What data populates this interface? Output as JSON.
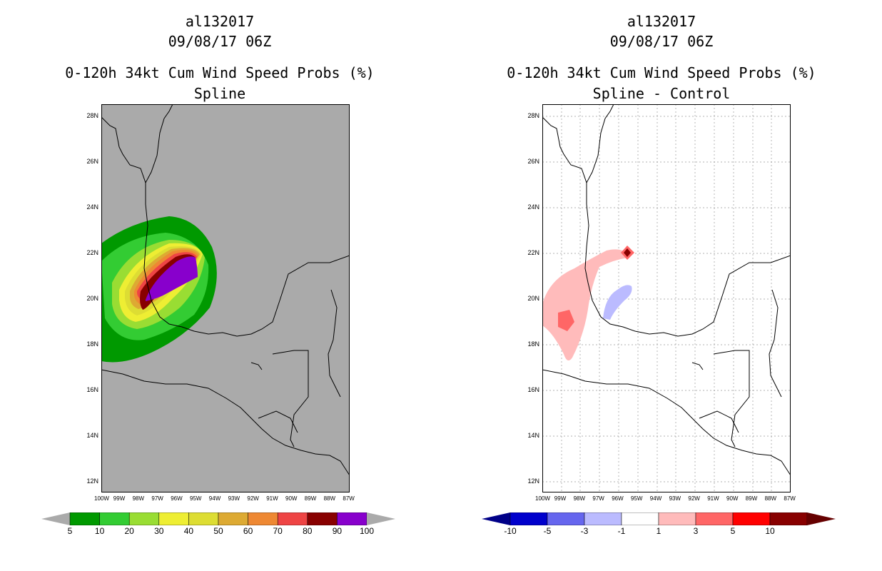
{
  "left": {
    "storm_id": "al132017",
    "datetime": "09/08/17 06Z",
    "product": "0-120h 34kt Cum Wind Speed Probs (%)",
    "subtitle": "Spline",
    "colorbar": {
      "labels": [
        "5",
        "10",
        "20",
        "30",
        "40",
        "50",
        "60",
        "70",
        "80",
        "90",
        "100"
      ],
      "colors": [
        "#009900",
        "#33cc33",
        "#99dd33",
        "#eeee33",
        "#dddd33",
        "#ddaa33",
        "#ee8833",
        "#ee4444",
        "#880000",
        "#8800cc"
      ]
    }
  },
  "right": {
    "storm_id": "al132017",
    "datetime": "09/08/17 06Z",
    "product": "0-120h 34kt Cum Wind Speed Probs (%)",
    "subtitle": "Spline - Control",
    "colorbar": {
      "labels": [
        "-10",
        "-5",
        "-3",
        "-1",
        "1",
        "3",
        "5",
        "10"
      ],
      "colors": [
        "#0000cc",
        "#6666ee",
        "#bbbbff",
        "#ffffff",
        "#ffbbbb",
        "#ff6666",
        "#ff0000",
        "#880000"
      ]
    }
  },
  "axes": {
    "lat_labels": [
      "28N",
      "26N",
      "24N",
      "22N",
      "20N",
      "18N",
      "16N",
      "14N",
      "12N"
    ],
    "lon_labels": [
      "100W",
      "99W",
      "98W",
      "97W",
      "96W",
      "95W",
      "94W",
      "93W",
      "92W",
      "91W",
      "90W",
      "89W",
      "88W",
      "87W"
    ]
  }
}
